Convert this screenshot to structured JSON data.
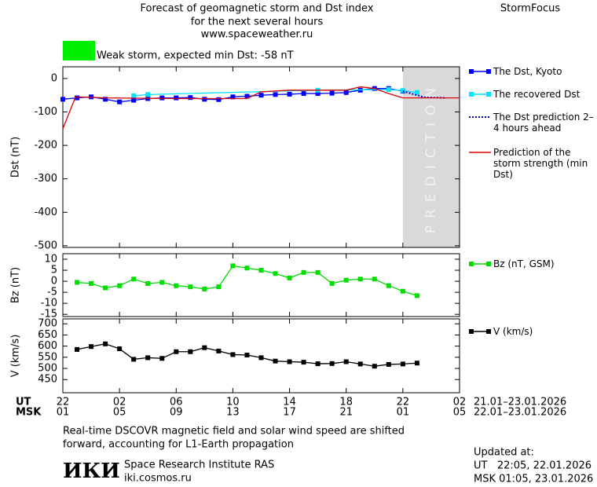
{
  "header": {
    "title": "Forecast of geomagnetic storm and Dst index",
    "subtitle": "for the next several hours",
    "url": "www.spaceweather.ru",
    "brand": "StormFocus",
    "storm_color": "#00ee00",
    "storm_text": "Weak storm, expected min Dst: -58 nT"
  },
  "chart_data": [
    {
      "type": "line",
      "ylabel": "Dst (nT)",
      "ylim": [
        -505,
        35
      ],
      "yticks": [
        0,
        -100,
        -200,
        -300,
        -400,
        -500
      ],
      "shaded_region": [
        24,
        28
      ],
      "annotation": "PREDICTION",
      "series": [
        {
          "name": "The Dst, Kyoto",
          "color": "#0000ff",
          "marker": "square",
          "x": [
            0,
            1,
            2,
            3,
            4,
            5,
            6,
            7,
            8,
            9,
            10,
            11,
            12,
            13,
            14,
            15,
            16,
            17,
            18,
            19,
            20,
            21,
            22,
            23,
            24
          ],
          "values": [
            -62,
            -58,
            -55,
            -62,
            -70,
            -65,
            -60,
            -58,
            -58,
            -57,
            -62,
            -63,
            -55,
            -53,
            -50,
            -48,
            -47,
            -45,
            -45,
            -44,
            -42,
            -35,
            -30,
            -30,
            -38
          ]
        },
        {
          "name": "The recovered Dst",
          "color": "#00e5ff",
          "marker": "square",
          "x": [
            5,
            6,
            18,
            23,
            24,
            25
          ],
          "values": [
            -52,
            -48,
            -35,
            -33,
            -36,
            -42
          ]
        },
        {
          "name": "The Dst prediction 2–4 hours ahead",
          "color": "#0000cc",
          "dash": "dotted",
          "x": [
            24,
            25.5,
            27
          ],
          "values": [
            -38,
            -56,
            -58
          ]
        },
        {
          "name": "Prediction of the storm strength (min Dst)",
          "color": "#dd0000",
          "x": [
            0,
            0.9,
            3,
            8,
            13,
            14,
            16,
            20,
            21,
            22,
            23,
            24,
            28
          ],
          "values": [
            -150,
            -55,
            -58,
            -60,
            -60,
            -40,
            -35,
            -35,
            -25,
            -30,
            -45,
            -58,
            -58
          ]
        }
      ]
    },
    {
      "type": "line",
      "ylabel": "Bz (nT)",
      "ylim": [
        -16,
        12.5
      ],
      "yticks": [
        10,
        5,
        0,
        -5,
        -10,
        -15
      ],
      "series": [
        {
          "name": "Bz (nT, GSM)",
          "color": "#00dd00",
          "marker": "square",
          "x": [
            1,
            2,
            3,
            4,
            5,
            6,
            7,
            8,
            9,
            10,
            11,
            12,
            13,
            14,
            15,
            16,
            17,
            18,
            19,
            20,
            21,
            22,
            23,
            24,
            25
          ],
          "values": [
            -0.5,
            -1,
            -3,
            -2,
            1,
            -1,
            -0.5,
            -2,
            -2.5,
            -3.5,
            -2.5,
            7,
            6,
            5,
            3.5,
            1.5,
            4,
            4,
            -1,
            0.5,
            1,
            1,
            -2,
            -4.5,
            -6.5
          ]
        }
      ]
    },
    {
      "type": "line",
      "ylabel": "V (km/s)",
      "ylim": [
        391,
        722
      ],
      "yticks": [
        700,
        650,
        600,
        550,
        500,
        450
      ],
      "xlim": [
        0,
        28
      ],
      "x_axis_labels": [
        "UT",
        "MSK"
      ],
      "date_ranges": [
        "21.01–23.01.2026",
        "22.01–23.01.2026"
      ],
      "xticks": [
        {
          "value": 0,
          "label": "22"
        },
        {
          "value": 4,
          "label": "02"
        },
        {
          "value": 8,
          "label": "06"
        },
        {
          "value": 12,
          "label": "10"
        },
        {
          "value": 16,
          "label": "14"
        },
        {
          "value": 20,
          "label": "18"
        },
        {
          "value": 24,
          "label": "22"
        },
        {
          "value": 28,
          "label": "02"
        }
      ],
      "xticks_msk": [
        {
          "value": 0,
          "label": "01"
        },
        {
          "value": 4,
          "label": "05"
        },
        {
          "value": 8,
          "label": "09"
        },
        {
          "value": 12,
          "label": "13"
        },
        {
          "value": 16,
          "label": "17"
        },
        {
          "value": 20,
          "label": "21"
        },
        {
          "value": 24,
          "label": "01"
        },
        {
          "value": 28,
          "label": "05"
        }
      ],
      "series": [
        {
          "name": "V (km/s)",
          "color": "#000000",
          "marker": "square",
          "x": [
            1,
            2,
            3,
            4,
            5,
            6,
            7,
            8,
            9,
            10,
            11,
            12,
            13,
            14,
            15,
            16,
            17,
            18,
            19,
            20,
            21,
            22,
            23,
            24,
            25
          ],
          "values": [
            585,
            598,
            610,
            588,
            541,
            548,
            545,
            575,
            575,
            593,
            578,
            562,
            560,
            548,
            533,
            530,
            528,
            521,
            522,
            530,
            520,
            510,
            518,
            520,
            524
          ]
        }
      ]
    }
  ],
  "footer": {
    "note": [
      "Real-time DSCOVR magnetic field and solar wind speed are shifted",
      "forward, accounting for L1-Earth propagation"
    ],
    "logo": "ИКИ",
    "institute": "Space Research Institute RAS",
    "site": "iki.cosmos.ru",
    "updated": [
      "Updated at:",
      "UT   22:05, 22.01.2026",
      "MSK 01:05, 23.01.2026"
    ]
  }
}
